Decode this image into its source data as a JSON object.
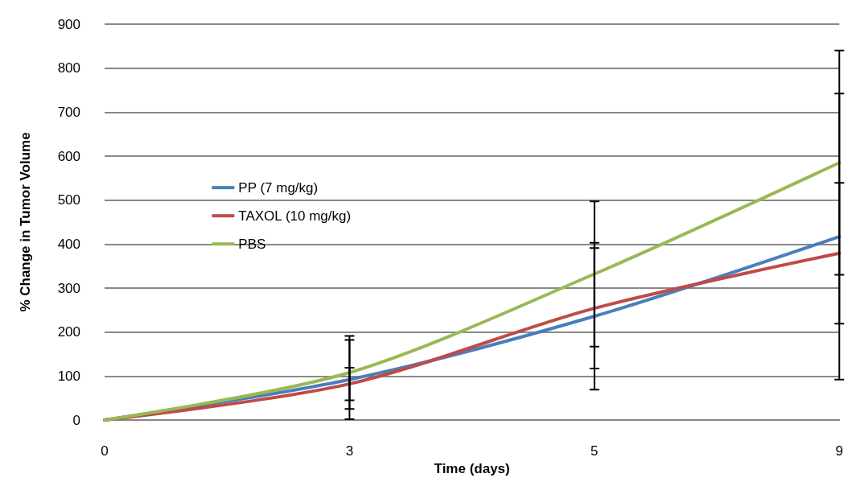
{
  "chart_data": {
    "type": "line",
    "xlabel": "Time (days)",
    "ylabel": "% Change in Tumor Volume",
    "categories": [
      "0",
      "3",
      "5",
      "9"
    ],
    "series": [
      {
        "name": "PP (7 mg/kg)",
        "color": "#4a7ebb",
        "values": [
          0,
          92,
          236,
          417
        ],
        "errors": [
          null,
          90,
          167,
          325
        ]
      },
      {
        "name": "TAXOL (10 mg/kg)",
        "color": "#be4b48",
        "values": [
          0,
          82,
          254,
          379
        ],
        "errors": [
          null,
          37,
          137,
          160
        ]
      },
      {
        "name": "PBS",
        "color": "#98b954",
        "values": [
          0,
          108,
          332,
          585
        ],
        "errors": [
          null,
          83,
          165,
          255
        ]
      }
    ],
    "ylim": [
      0,
      900
    ],
    "yticks": [
      0,
      100,
      200,
      300,
      400,
      500,
      600,
      700,
      800,
      900
    ],
    "grid": "y",
    "legend": "left",
    "marker": "none",
    "line_style": "solid"
  }
}
